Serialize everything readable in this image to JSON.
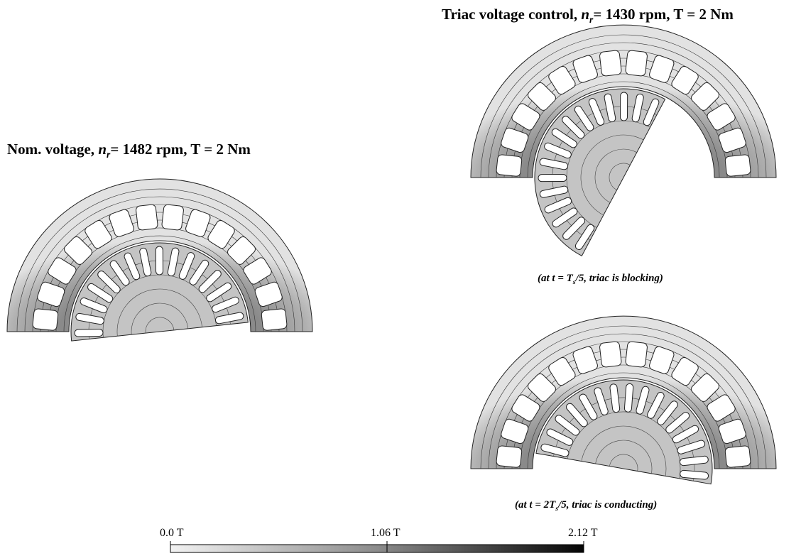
{
  "left_plot": {
    "title": {
      "prefix": "Nom. voltage, ",
      "var": "n",
      "sub": "r",
      "suffix": "= 1482 rpm, T = 2 Nm"
    }
  },
  "right_plots": {
    "title": {
      "prefix": "Triac voltage control, ",
      "var": "n",
      "sub": "r",
      "suffix": "= 1430 rpm, T = 2 Nm"
    },
    "captions": [
      {
        "before": "(at t = T",
        "sub": "s",
        "after": "/5,  triac is blocking)"
      },
      {
        "before": "(at t = 2T",
        "sub": "s",
        "after": "/5,  triac is conducting)"
      }
    ]
  },
  "colorbar": {
    "labels": [
      "0.0 T",
      "1.06 T",
      "2.12 T"
    ]
  }
}
